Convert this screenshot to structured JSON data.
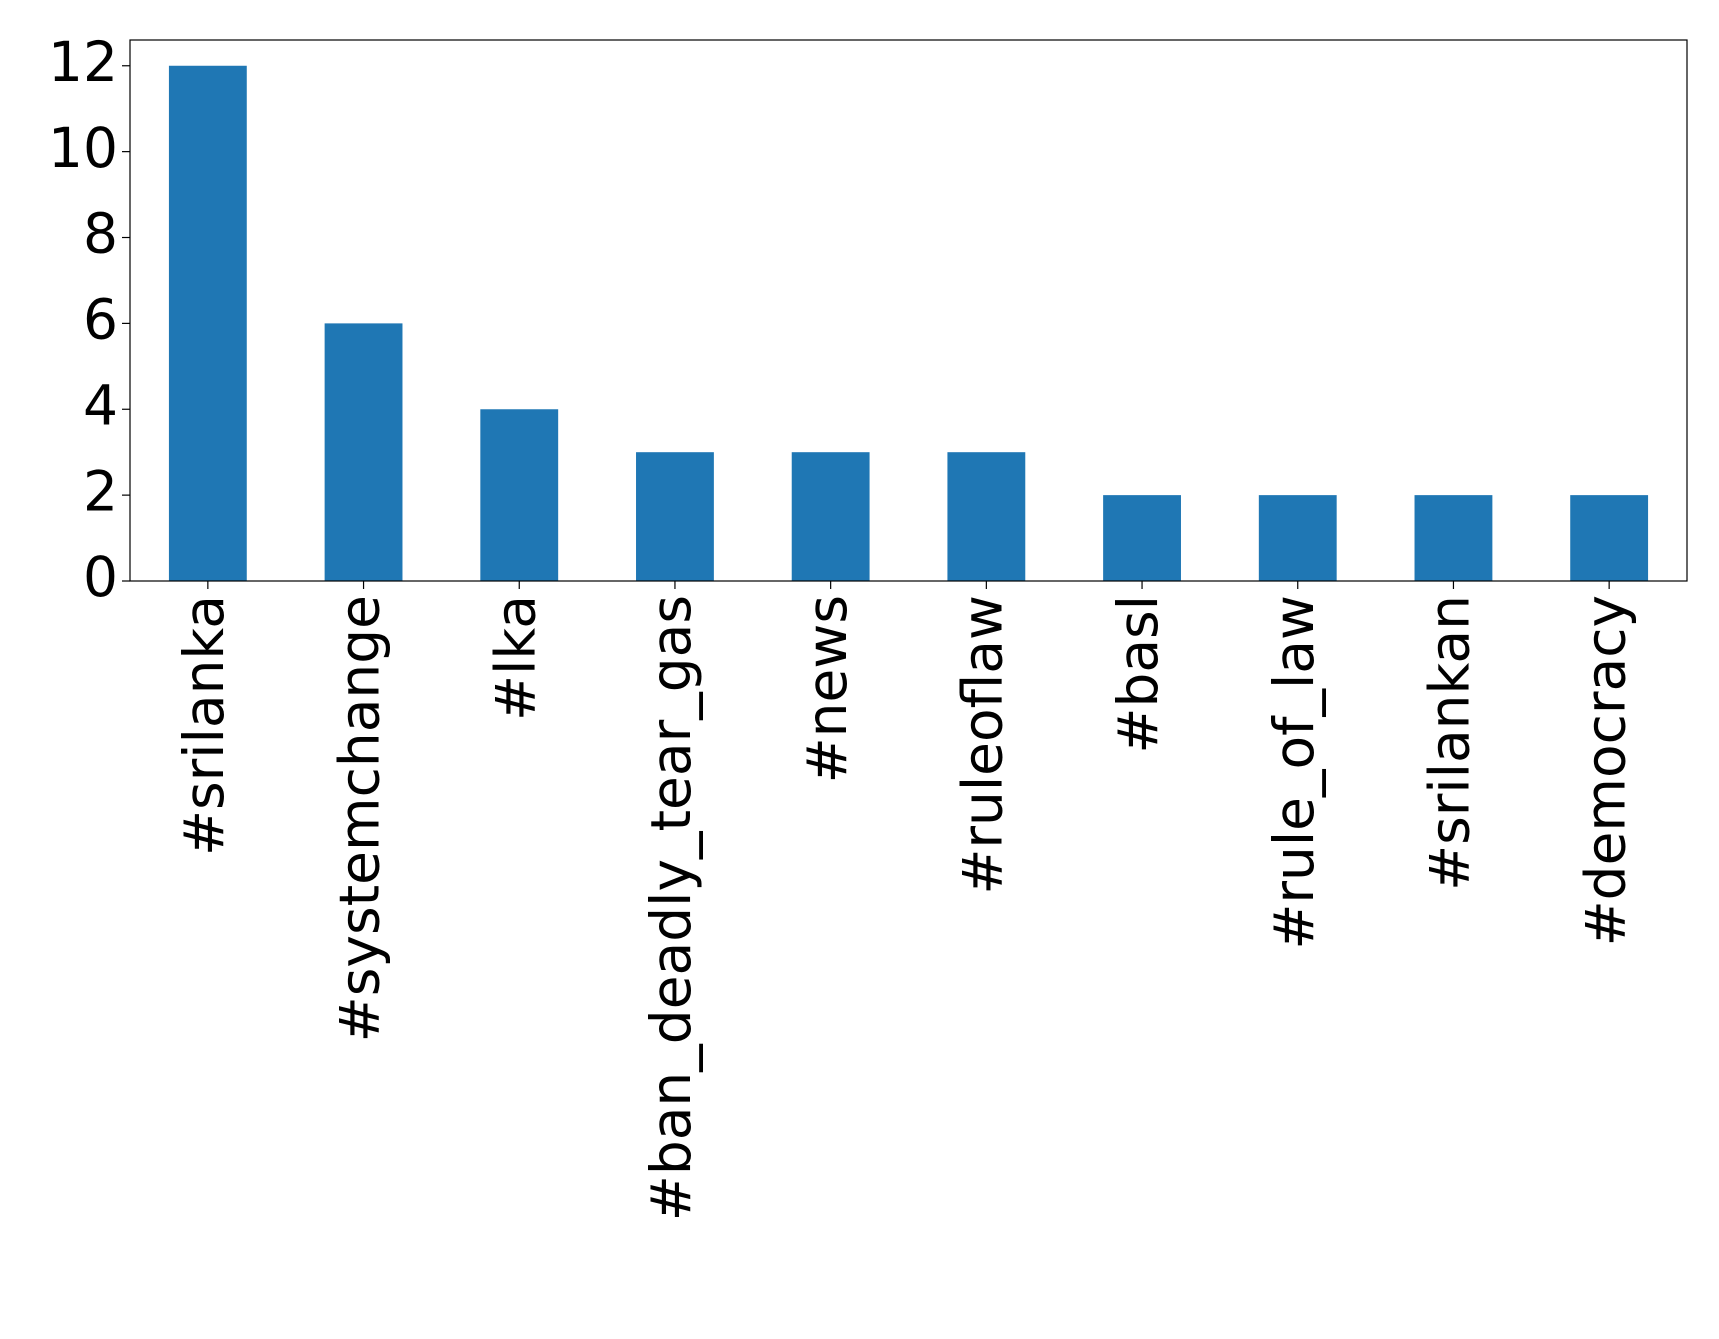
{
  "chart_data": {
    "type": "bar",
    "categories": [
      "#srilanka",
      "#systemchange",
      "#lka",
      "#ban_deadly_tear_gas",
      "#news",
      "#ruleoflaw",
      "#basl",
      "#rule_of_law",
      "#srilankan",
      "#democracy"
    ],
    "values": [
      12,
      6,
      4,
      3,
      3,
      3,
      2,
      2,
      2,
      2
    ],
    "color": "#1f77b4",
    "ylim": [
      0,
      12.6
    ],
    "yticks": [
      0,
      2,
      4,
      6,
      8,
      10,
      12
    ],
    "grid": false
  }
}
